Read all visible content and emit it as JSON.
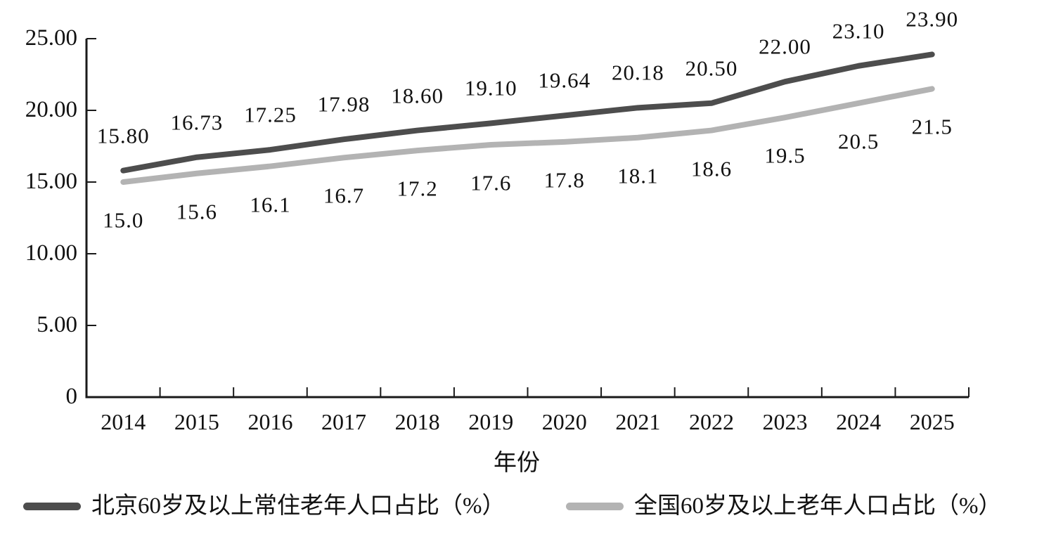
{
  "chart_data": {
    "type": "line",
    "x": [
      "2014",
      "2015",
      "2016",
      "2017",
      "2018",
      "2019",
      "2020",
      "2021",
      "2022",
      "2023",
      "2024",
      "2025"
    ],
    "xlabel": "年份",
    "ylim": [
      0,
      25
    ],
    "yticks": [
      {
        "label": "0",
        "value": 0
      },
      {
        "label": "5.00",
        "value": 5
      },
      {
        "label": "10.00",
        "value": 10
      },
      {
        "label": "15.00",
        "value": 15
      },
      {
        "label": "20.00",
        "value": 20
      },
      {
        "label": "25.00",
        "value": 25
      }
    ],
    "grid": false,
    "legend_position": "bottom",
    "background": "#ffffff",
    "axis_color": "#1a1a1a",
    "series": [
      {
        "key": "beijing",
        "name": "北京60岁及以上常住老年人口占比（%）",
        "color": "#4d4d4d",
        "values": [
          15.8,
          16.73,
          17.25,
          17.98,
          18.6,
          19.1,
          19.64,
          20.18,
          20.5,
          22.0,
          23.1,
          23.9
        ],
        "labels": [
          "15.80",
          "16.73",
          "17.25",
          "17.98",
          "18.60",
          "19.10",
          "19.64",
          "20.18",
          "20.50",
          "22.00",
          "23.10",
          "23.90"
        ],
        "label_side": "above"
      },
      {
        "key": "national",
        "name": "全国60岁及以上老年人口占比（%）",
        "color": "#b3b3b3",
        "values": [
          15.0,
          15.6,
          16.1,
          16.7,
          17.2,
          17.6,
          17.8,
          18.1,
          18.6,
          19.5,
          20.5,
          21.5
        ],
        "labels": [
          "15.0",
          "15.6",
          "16.1",
          "16.7",
          "17.2",
          "17.6",
          "17.8",
          "18.1",
          "18.6",
          "19.5",
          "20.5",
          "21.5"
        ],
        "label_side": "below"
      }
    ]
  }
}
